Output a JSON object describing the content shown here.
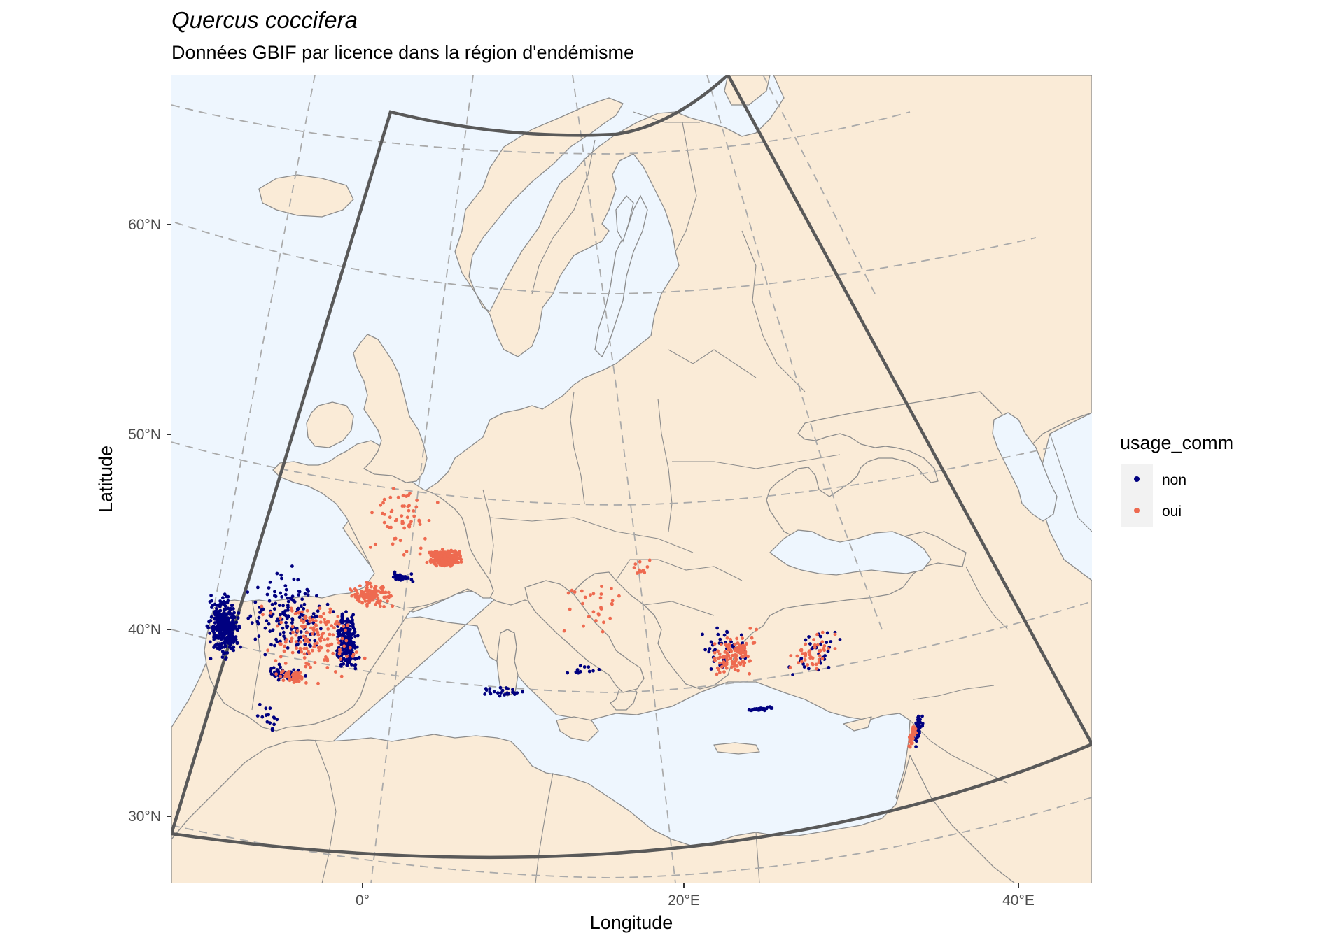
{
  "title": "Quercus coccifera",
  "subtitle": "Données GBIF par licence dans la région d'endémisme",
  "axes": {
    "x_title": "Longitude",
    "y_title": "Latitude",
    "x_ticks": [
      "0°",
      "20°E",
      "40°E"
    ],
    "y_ticks": [
      "60°N",
      "50°N",
      "40°N",
      "30°N"
    ]
  },
  "legend": {
    "title": "usage_comm",
    "items": [
      {
        "label": "non",
        "color": "#000080"
      },
      {
        "label": "oui",
        "color": "#EE6A50"
      }
    ]
  },
  "colors": {
    "sea": "#EEF6FE",
    "land": "#FAEBD7",
    "borders": "#8C8C8C",
    "graticule": "#AAAAAA",
    "region_outline": "#595959"
  },
  "chart_data": {
    "type": "scatter",
    "x_range": [
      -12,
      44
    ],
    "y_range": [
      27,
      67
    ],
    "graticule": true,
    "legend_position": "right",
    "series": [
      {
        "name": "non",
        "color": "#000080",
        "clusters": [
          {
            "lon": -8.5,
            "lat": 39.0,
            "lon_spread": 1.2,
            "lat_spread": 2.0,
            "count": 320
          },
          {
            "lon": -1.0,
            "lat": 39.0,
            "lon_spread": 0.8,
            "lat_spread": 1.8,
            "count": 260
          },
          {
            "lon": -4.5,
            "lat": 40.0,
            "lon_spread": 3.5,
            "lat_spread": 3.0,
            "count": 160
          },
          {
            "lon": -5.0,
            "lat": 37.0,
            "lon_spread": 1.5,
            "lat_spread": 0.5,
            "count": 50
          },
          {
            "lon": 24.8,
            "lat": 35.2,
            "lon_spread": 1.0,
            "lat_spread": 0.12,
            "count": 35
          },
          {
            "lon": 35.3,
            "lat": 32.8,
            "lon_spread": 0.3,
            "lat_spread": 1.0,
            "count": 50
          },
          {
            "lon": 22.0,
            "lat": 38.5,
            "lon_spread": 2.0,
            "lat_spread": 1.5,
            "count": 45
          },
          {
            "lon": 28.0,
            "lat": 37.8,
            "lon_spread": 2.0,
            "lat_spread": 1.5,
            "count": 35
          },
          {
            "lon": 8.5,
            "lat": 36.8,
            "lon_spread": 2.0,
            "lat_spread": 0.4,
            "count": 25
          },
          {
            "lon": 13.5,
            "lat": 37.8,
            "lon_spread": 1.5,
            "lat_spread": 0.4,
            "count": 12
          },
          {
            "lon": 2.5,
            "lat": 42.5,
            "lon_spread": 1.0,
            "lat_spread": 0.4,
            "count": 25
          },
          {
            "lon": -6.0,
            "lat": 34.5,
            "lon_spread": 1.5,
            "lat_spread": 1.0,
            "count": 15
          }
        ]
      },
      {
        "name": "oui",
        "color": "#EE6A50",
        "clusters": [
          {
            "lon": 5.0,
            "lat": 43.6,
            "lon_spread": 1.2,
            "lat_spread": 0.5,
            "count": 380
          },
          {
            "lon": 0.5,
            "lat": 41.5,
            "lon_spread": 1.8,
            "lat_spread": 0.8,
            "count": 110
          },
          {
            "lon": -3.0,
            "lat": 39.0,
            "lon_spread": 3.5,
            "lat_spread": 2.5,
            "count": 150
          },
          {
            "lon": -4.5,
            "lat": 36.9,
            "lon_spread": 1.2,
            "lat_spread": 0.4,
            "count": 50
          },
          {
            "lon": 2.5,
            "lat": 45.5,
            "lon_spread": 2.5,
            "lat_spread": 2.5,
            "count": 60
          },
          {
            "lon": 22.8,
            "lat": 38.3,
            "lon_spread": 1.8,
            "lat_spread": 1.4,
            "count": 110
          },
          {
            "lon": 27.5,
            "lat": 37.8,
            "lon_spread": 1.8,
            "lat_spread": 1.4,
            "count": 45
          },
          {
            "lon": 35.0,
            "lat": 32.5,
            "lon_spread": 0.3,
            "lat_spread": 0.8,
            "count": 35
          },
          {
            "lon": 14.0,
            "lat": 41.0,
            "lon_spread": 2.5,
            "lat_spread": 2.0,
            "count": 30
          },
          {
            "lon": 16.5,
            "lat": 43.0,
            "lon_spread": 1.2,
            "lat_spread": 0.6,
            "count": 12
          }
        ]
      }
    ]
  }
}
